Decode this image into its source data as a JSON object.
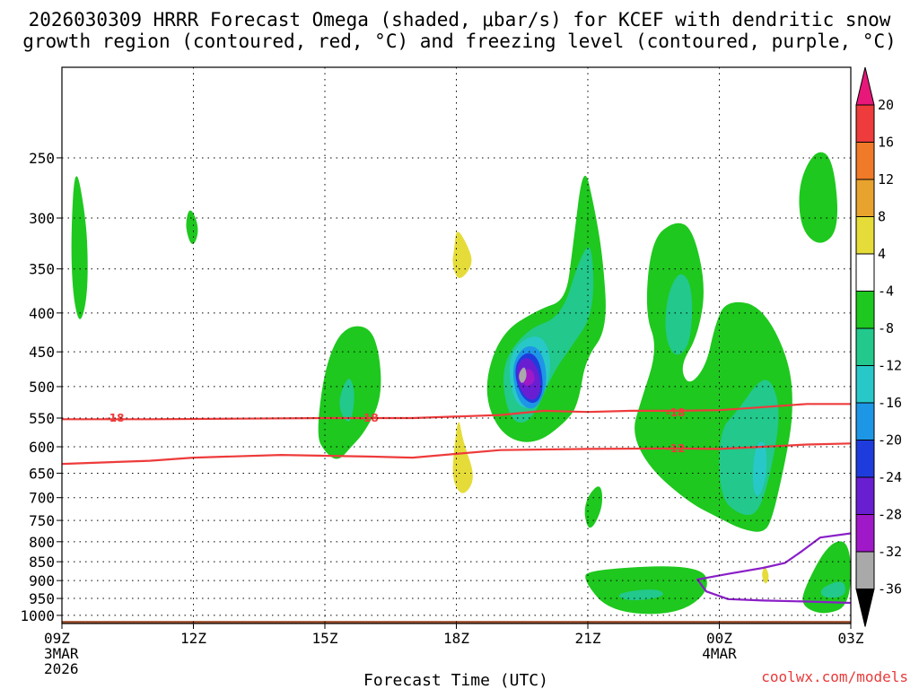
{
  "chart_data": {
    "type": "heatmap",
    "title_line1": "2026030309 HRRR Forecast Omega (shaded, μbar/s) for KCEF with dendritic snow",
    "title_line2": "growth region (contoured, red, °C) and freezing level (contoured, purple, °C)",
    "xlabel": "Forecast Time (UTC)",
    "ylabel": "",
    "credit": "coolwx.com/models",
    "x_range_hours": [
      0,
      18
    ],
    "x_ticks": [
      {
        "hour": 0,
        "label": "09Z",
        "sub1": "3MAR",
        "sub2": "2026"
      },
      {
        "hour": 3,
        "label": "12Z",
        "sub1": "",
        "sub2": ""
      },
      {
        "hour": 6,
        "label": "15Z",
        "sub1": "",
        "sub2": ""
      },
      {
        "hour": 9,
        "label": "18Z",
        "sub1": "",
        "sub2": ""
      },
      {
        "hour": 12,
        "label": "21Z",
        "sub1": "",
        "sub2": ""
      },
      {
        "hour": 15,
        "label": "00Z",
        "sub1": "4MAR",
        "sub2": ""
      },
      {
        "hour": 18,
        "label": "03Z",
        "sub1": "",
        "sub2": ""
      }
    ],
    "y_range_hpa": [
      1025,
      190
    ],
    "y_ticks": [
      250,
      300,
      350,
      400,
      450,
      500,
      550,
      600,
      650,
      700,
      750,
      800,
      850,
      900,
      950,
      1000
    ],
    "grid": true,
    "colorbar": {
      "levels": [
        20,
        16,
        12,
        8,
        4,
        -4,
        -8,
        -12,
        -16,
        -20,
        -24,
        -28,
        -32,
        -36
      ],
      "bins": [
        {
          "label": "top",
          "color": "#e8177a"
        },
        {
          "label": "16..20",
          "color": "#ee3b3b"
        },
        {
          "label": "12..16",
          "color": "#f07a28"
        },
        {
          "label": "8..12",
          "color": "#e8a22e"
        },
        {
          "label": "4..8",
          "color": "#e5dc3a"
        },
        {
          "label": "-4..4",
          "color": "#ffffff"
        },
        {
          "label": "-8..-4",
          "color": "#1ec81e"
        },
        {
          "label": "-12..-8",
          "color": "#22c88c"
        },
        {
          "label": "-16..-12",
          "color": "#28c8c8"
        },
        {
          "label": "-20..-16",
          "color": "#1e96e6"
        },
        {
          "label": "-24..-20",
          "color": "#1e3cdc"
        },
        {
          "label": "-28..-24",
          "color": "#6a1ed2"
        },
        {
          "label": "-32..-28",
          "color": "#a019c8"
        },
        {
          "label": "-36..-32",
          "color": "#a9a9a9"
        },
        {
          "label": "bottom",
          "color": "#000000"
        }
      ]
    },
    "ground_color": "#a0522d",
    "regions": [
      {
        "name": "green-1",
        "color": "#1ec81e",
        "points": [
          [
            0.3,
            251
          ],
          [
            0.55,
            300
          ],
          [
            0.6,
            350
          ],
          [
            0.55,
            390
          ],
          [
            0.4,
            415
          ],
          [
            0.25,
            380
          ],
          [
            0.2,
            320
          ]
        ]
      },
      {
        "name": "green-2",
        "color": "#1ec81e",
        "points": [
          [
            2.92,
            288
          ],
          [
            3.15,
            310
          ],
          [
            2.98,
            330
          ],
          [
            2.8,
            308
          ]
        ]
      },
      {
        "name": "green-3",
        "color": "#1ec81e",
        "points": [
          [
            5.8,
            580
          ],
          [
            6.0,
            470
          ],
          [
            6.4,
            418
          ],
          [
            7.0,
            415
          ],
          [
            7.25,
            450
          ],
          [
            7.3,
            520
          ],
          [
            6.9,
            575
          ],
          [
            6.6,
            600
          ],
          [
            6.3,
            628
          ],
          [
            6.0,
            610
          ]
        ]
      },
      {
        "name": "green-4",
        "color": "#1ec81e",
        "points": [
          [
            9.6,
            505
          ],
          [
            10.0,
            425
          ],
          [
            10.9,
            395
          ],
          [
            11.5,
            385
          ],
          [
            11.65,
            330
          ],
          [
            11.9,
            252
          ],
          [
            12.15,
            290
          ],
          [
            12.35,
            340
          ],
          [
            12.45,
            420
          ],
          [
            11.95,
            460
          ],
          [
            11.8,
            520
          ],
          [
            11.6,
            550
          ],
          [
            10.8,
            598
          ],
          [
            10.0,
            580
          ]
        ]
      },
      {
        "name": "green-5",
        "color": "#1ec81e",
        "points": [
          [
            13.6,
            445
          ],
          [
            13.3,
            400
          ],
          [
            13.45,
            320
          ],
          [
            14.0,
            302
          ],
          [
            14.4,
            310
          ],
          [
            14.7,
            370
          ],
          [
            14.5,
            430
          ],
          [
            14.1,
            470
          ],
          [
            14.3,
            500
          ],
          [
            14.7,
            470
          ],
          [
            14.9,
            415
          ],
          [
            15.15,
            385
          ],
          [
            15.95,
            390
          ],
          [
            16.6,
            460
          ],
          [
            16.7,
            540
          ],
          [
            16.5,
            630
          ],
          [
            16.2,
            750
          ],
          [
            16.0,
            780
          ],
          [
            15.5,
            770
          ],
          [
            15.0,
            745
          ],
          [
            14.3,
            710
          ],
          [
            13.4,
            640
          ],
          [
            13.0,
            575
          ],
          [
            13.2,
            525
          ]
        ]
      },
      {
        "name": "green-6",
        "color": "#1ec81e",
        "points": [
          [
            12.0,
            695
          ],
          [
            12.3,
            668
          ],
          [
            12.35,
            720
          ],
          [
            12.05,
            780
          ],
          [
            11.9,
            735
          ]
        ]
      },
      {
        "name": "green-7",
        "color": "#1ec81e",
        "points": [
          [
            12.0,
            870
          ],
          [
            14.6,
            856
          ],
          [
            14.8,
            930
          ],
          [
            14.0,
            1000
          ],
          [
            12.5,
            990
          ],
          [
            11.9,
            900
          ]
        ]
      },
      {
        "name": "green-8",
        "color": "#1ec81e",
        "points": [
          [
            16.8,
            270
          ],
          [
            17.2,
            243
          ],
          [
            17.6,
            250
          ],
          [
            17.75,
            310
          ],
          [
            17.3,
            328
          ],
          [
            16.85,
            310
          ]
        ]
      },
      {
        "name": "green-9",
        "color": "#1ec81e",
        "points": [
          [
            17.5,
            800
          ],
          [
            18.0,
            798
          ],
          [
            18.0,
            970
          ],
          [
            17.4,
            1000
          ],
          [
            16.9,
            975
          ],
          [
            16.9,
            930
          ]
        ]
      },
      {
        "name": "teal-1",
        "color": "#22c88c",
        "points": [
          [
            6.3,
            520
          ],
          [
            6.55,
            480
          ],
          [
            6.7,
            510
          ],
          [
            6.6,
            560
          ],
          [
            6.4,
            550
          ]
        ]
      },
      {
        "name": "teal-2",
        "color": "#22c88c",
        "points": [
          [
            10.0,
            470
          ],
          [
            10.6,
            420
          ],
          [
            11.4,
            405
          ],
          [
            11.8,
            340
          ],
          [
            12.1,
            320
          ],
          [
            12.15,
            400
          ],
          [
            11.6,
            445
          ],
          [
            11.2,
            480
          ],
          [
            10.7,
            560
          ],
          [
            10.2,
            555
          ]
        ]
      },
      {
        "name": "teal-3",
        "color": "#22c88c",
        "points": [
          [
            13.8,
            380
          ],
          [
            14.1,
            350
          ],
          [
            14.4,
            370
          ],
          [
            14.35,
            440
          ],
          [
            14.0,
            460
          ],
          [
            13.75,
            430
          ]
        ]
      },
      {
        "name": "teal-4",
        "color": "#22c88c",
        "points": [
          [
            15.0,
            570
          ],
          [
            15.4,
            540
          ],
          [
            15.9,
            490
          ],
          [
            16.2,
            490
          ],
          [
            16.4,
            540
          ],
          [
            16.2,
            640
          ],
          [
            15.9,
            735
          ],
          [
            15.5,
            740
          ],
          [
            15.0,
            700
          ]
        ]
      },
      {
        "name": "teal-5",
        "color": "#22c88c",
        "points": [
          [
            12.6,
            935
          ],
          [
            13.6,
            920
          ],
          [
            13.8,
            945
          ],
          [
            12.9,
            960
          ]
        ]
      },
      {
        "name": "teal-6",
        "color": "#22c88c",
        "points": [
          [
            17.3,
            920
          ],
          [
            17.85,
            895
          ],
          [
            17.9,
            945
          ],
          [
            17.35,
            950
          ]
        ]
      },
      {
        "name": "cyan-1",
        "color": "#28c8c8",
        "points": [
          [
            10.15,
            465
          ],
          [
            10.5,
            432
          ],
          [
            11.0,
            428
          ],
          [
            11.2,
            470
          ],
          [
            10.9,
            530
          ],
          [
            10.35,
            535
          ]
        ]
      },
      {
        "name": "cyan-2",
        "color": "#28c8c8",
        "points": [
          [
            15.8,
            600
          ],
          [
            16.05,
            585
          ],
          [
            16.1,
            650
          ],
          [
            15.9,
            705
          ],
          [
            15.75,
            680
          ]
        ]
      },
      {
        "name": "blue-1",
        "color": "#1e96e6",
        "points": [
          [
            10.25,
            470
          ],
          [
            10.55,
            440
          ],
          [
            10.95,
            446
          ],
          [
            11.1,
            495
          ],
          [
            10.8,
            540
          ],
          [
            10.4,
            525
          ]
        ]
      },
      {
        "name": "darkblue-1",
        "color": "#1e3cdc",
        "points": [
          [
            10.3,
            470
          ],
          [
            10.6,
            448
          ],
          [
            10.9,
            460
          ],
          [
            11.0,
            505
          ],
          [
            10.8,
            530
          ],
          [
            10.45,
            515
          ]
        ]
      },
      {
        "name": "purple-1",
        "color": "#6a1ed2",
        "points": [
          [
            10.35,
            470
          ],
          [
            10.6,
            455
          ],
          [
            10.85,
            470
          ],
          [
            10.95,
            505
          ],
          [
            10.75,
            525
          ],
          [
            10.45,
            508
          ]
        ]
      },
      {
        "name": "violet-1",
        "color": "#a019c8",
        "points": [
          [
            10.5,
            478
          ],
          [
            10.7,
            472
          ],
          [
            10.82,
            490
          ],
          [
            10.65,
            500
          ],
          [
            10.5,
            495
          ]
        ]
      },
      {
        "name": "grey-1",
        "color": "#a9a9a9",
        "points": [
          [
            10.44,
            478
          ],
          [
            10.56,
            469
          ],
          [
            10.62,
            485
          ],
          [
            10.5,
            497
          ],
          [
            10.42,
            488
          ]
        ]
      },
      {
        "name": "yellow-1",
        "color": "#e5dc3a",
        "points": [
          [
            8.95,
            330
          ],
          [
            9.0,
            308
          ],
          [
            9.25,
            325
          ],
          [
            9.4,
            345
          ],
          [
            9.05,
            365
          ],
          [
            8.9,
            345
          ]
        ]
      },
      {
        "name": "yellow-2",
        "color": "#e5dc3a",
        "points": [
          [
            8.9,
            665
          ],
          [
            8.95,
            600
          ],
          [
            9.05,
            545
          ],
          [
            9.15,
            590
          ],
          [
            9.45,
            660
          ],
          [
            9.15,
            700
          ]
        ]
      },
      {
        "name": "yellow-3",
        "color": "#e5dc3a",
        "points": [
          [
            15.95,
            882
          ],
          [
            16.05,
            860
          ],
          [
            16.15,
            890
          ],
          [
            16.05,
            915
          ]
        ]
      }
    ],
    "contours": [
      {
        "label": "-18",
        "color": "#ee3b3b",
        "label_at": [
          [
            1.2,
            550
          ],
          [
            7.0,
            550
          ],
          [
            14.0,
            541
          ]
        ],
        "points": [
          [
            0,
            552
          ],
          [
            2,
            552
          ],
          [
            4,
            551
          ],
          [
            6,
            550
          ],
          [
            8,
            550
          ],
          [
            10,
            545
          ],
          [
            11,
            538
          ],
          [
            12,
            540
          ],
          [
            13,
            538
          ],
          [
            14,
            538
          ],
          [
            15,
            537
          ],
          [
            16,
            532
          ],
          [
            17,
            527
          ],
          [
            18,
            527
          ]
        ]
      },
      {
        "label": "-12",
        "color": "#ee3b3b",
        "label_at": [
          [
            14.0,
            603
          ]
        ],
        "points": [
          [
            0,
            632
          ],
          [
            2,
            626
          ],
          [
            3,
            620
          ],
          [
            5,
            615
          ],
          [
            7,
            618
          ],
          [
            8,
            620
          ],
          [
            9,
            613
          ],
          [
            10,
            606
          ],
          [
            12,
            604
          ],
          [
            14,
            603
          ],
          [
            15,
            604
          ],
          [
            16,
            600
          ],
          [
            17,
            596
          ],
          [
            18,
            594
          ]
        ]
      },
      {
        "label": "",
        "color": "#8a1ec8",
        "label_at": [],
        "points": [
          [
            18,
            780
          ],
          [
            17.3,
            790
          ],
          [
            16.9,
            822
          ],
          [
            16.5,
            853
          ],
          [
            16.0,
            866
          ],
          [
            15.2,
            882
          ],
          [
            14.5,
            897
          ],
          [
            14.7,
            930
          ],
          [
            15.2,
            952
          ],
          [
            16.0,
            956
          ],
          [
            17.0,
            959
          ],
          [
            18,
            963
          ]
        ]
      }
    ]
  }
}
